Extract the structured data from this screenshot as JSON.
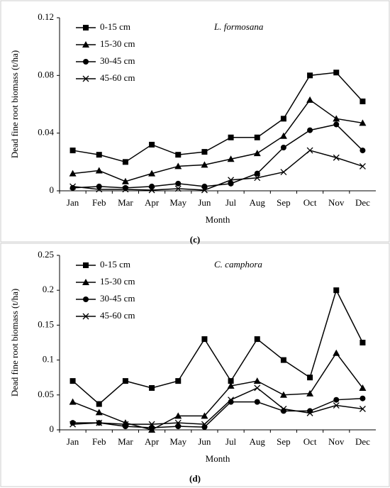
{
  "chart_data": [
    {
      "type": "line",
      "annotation": "L. formosana",
      "xlabel": "Month",
      "ylabel": "Dead fine root biomass (t/ha)",
      "caption": "(c)",
      "categories": [
        "Jan",
        "Feb",
        "Mar",
        "Apr",
        "May",
        "Jun",
        "Jul",
        "Aug",
        "Sep",
        "Oct",
        "Nov",
        "Dec"
      ],
      "ylim": [
        0,
        0.12
      ],
      "yticks": [
        0,
        0.04,
        0.08,
        0.12
      ],
      "legend": "upper-left",
      "series": [
        {
          "name": "0-15 cm",
          "marker": "square",
          "color": "#000000",
          "values": [
            0.028,
            0.025,
            0.02,
            0.032,
            0.025,
            0.027,
            0.037,
            0.037,
            0.05,
            0.08,
            0.082,
            0.062
          ]
        },
        {
          "name": "15-30 cm",
          "marker": "triangle",
          "color": "#000000",
          "values": [
            0.012,
            0.014,
            0.0065,
            0.012,
            0.017,
            0.018,
            0.022,
            0.026,
            0.038,
            0.063,
            0.05,
            0.047
          ]
        },
        {
          "name": "30-45 cm",
          "marker": "circle",
          "color": "#000000",
          "values": [
            0.002,
            0.003,
            0.002,
            0.003,
            0.005,
            0.003,
            0.005,
            0.012,
            0.03,
            0.042,
            0.046,
            0.028
          ]
        },
        {
          "name": "45-60 cm",
          "marker": "x",
          "color": "#000000",
          "values": [
            0.003,
            0.001,
            0.001,
            0.0005,
            0.0015,
            0.0005,
            0.0075,
            0.009,
            0.013,
            0.028,
            0.023,
            0.017
          ]
        }
      ]
    },
    {
      "type": "line",
      "annotation": "C. camphora",
      "xlabel": "Month",
      "ylabel": "Dead fine root biomass (t/ha)",
      "caption": "(d)",
      "categories": [
        "Jan",
        "Feb",
        "Mar",
        "Apr",
        "May",
        "Jun",
        "Jul",
        "Aug",
        "Sep",
        "Oct",
        "Nov",
        "Dec"
      ],
      "ylim": [
        0,
        0.25
      ],
      "yticks": [
        0,
        0.05,
        0.1,
        0.15,
        0.2,
        0.25
      ],
      "legend": "upper-left",
      "series": [
        {
          "name": "0-15 cm",
          "marker": "square",
          "color": "#000000",
          "values": [
            0.07,
            0.037,
            0.07,
            0.06,
            0.07,
            0.13,
            0.07,
            0.13,
            0.1,
            0.075,
            0.2,
            0.125
          ]
        },
        {
          "name": "15-30 cm",
          "marker": "triangle",
          "color": "#000000",
          "values": [
            0.04,
            0.025,
            0.01,
            0.0,
            0.02,
            0.02,
            0.063,
            0.07,
            0.05,
            0.052,
            0.11,
            0.06
          ]
        },
        {
          "name": "30-45 cm",
          "marker": "circle",
          "color": "#000000",
          "values": [
            0.01,
            0.01,
            0.005,
            0.003,
            0.005,
            0.004,
            0.04,
            0.04,
            0.027,
            0.027,
            0.043,
            0.045
          ]
        },
        {
          "name": "45-60 cm",
          "marker": "x",
          "color": "#000000",
          "values": [
            0.008,
            0.01,
            0.008,
            0.008,
            0.01,
            0.008,
            0.043,
            0.06,
            0.03,
            0.024,
            0.035,
            0.03
          ]
        }
      ]
    }
  ]
}
